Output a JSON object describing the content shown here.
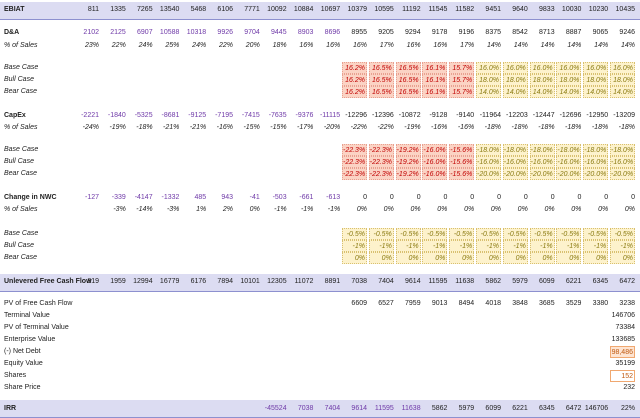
{
  "table": {
    "rows": [
      {
        "label": "EBIAT",
        "values": [
          "811",
          "1335",
          "7265",
          "13540",
          "5468",
          "6106",
          "7771",
          "10092",
          "10884",
          "10697",
          "10379",
          "10595",
          "11192",
          "11545",
          "11582",
          "9451",
          "9640",
          "9833",
          "10030",
          "10230",
          "10435"
        ]
      },
      {
        "label": "D&A",
        "values": [
          "2102",
          "2125",
          "6907",
          "10588",
          "10318",
          "9926",
          "9704",
          "9445",
          "8903",
          "8696",
          "8955",
          "9205",
          "9294",
          "9178",
          "9196",
          "8375",
          "8542",
          "8713",
          "8887",
          "9065",
          "9246"
        ]
      },
      {
        "label": "% of Sales",
        "values": [
          "23%",
          "22%",
          "24%",
          "25%",
          "24%",
          "22%",
          "20%",
          "18%",
          "16%",
          "16%",
          "16%",
          "17%",
          "16%",
          "16%",
          "17%",
          "14%",
          "14%",
          "14%",
          "14%",
          "14%",
          "14%"
        ]
      },
      {
        "label": "Base Case",
        "values": [
          null,
          null,
          null,
          null,
          null,
          null,
          null,
          null,
          null,
          null,
          "16.2%",
          "16.5%",
          "16.5%",
          "16.1%",
          "15.7%",
          "16.0%",
          "16.0%",
          "16.0%",
          "16.0%",
          "16.0%",
          "16.0%"
        ]
      },
      {
        "label": "Bull Case",
        "values": [
          null,
          null,
          null,
          null,
          null,
          null,
          null,
          null,
          null,
          null,
          "16.2%",
          "16.5%",
          "16.5%",
          "16.1%",
          "15.7%",
          "18.0%",
          "18.0%",
          "18.0%",
          "18.0%",
          "18.0%",
          "18.0%"
        ]
      },
      {
        "label": "Bear Case",
        "values": [
          null,
          null,
          null,
          null,
          null,
          null,
          null,
          null,
          null,
          null,
          "16.2%",
          "16.5%",
          "16.5%",
          "16.1%",
          "15.7%",
          "14.0%",
          "14.0%",
          "14.0%",
          "14.0%",
          "14.0%",
          "14.0%"
        ]
      },
      {
        "label": "CapEx",
        "values": [
          "-2221",
          "-1840",
          "-5325",
          "-8681",
          "-9125",
          "-7195",
          "-7415",
          "-7635",
          "-9376",
          "-11115",
          "-12296",
          "-12396",
          "-10872",
          "-9128",
          "-9140",
          "-11964",
          "-12203",
          "-12447",
          "-12696",
          "-12950",
          "-13209"
        ]
      },
      {
        "label": "% of Sales",
        "values": [
          "-24%",
          "-19%",
          "-18%",
          "-21%",
          "-21%",
          "-16%",
          "-15%",
          "-15%",
          "-17%",
          "-20%",
          "-22%",
          "-22%",
          "-19%",
          "-16%",
          "-16%",
          "-18%",
          "-18%",
          "-18%",
          "-18%",
          "-18%",
          "-18%"
        ]
      },
      {
        "label": "Base Case",
        "values": [
          null,
          null,
          null,
          null,
          null,
          null,
          null,
          null,
          null,
          null,
          "-22.3%",
          "-22.3%",
          "-19.2%",
          "-16.0%",
          "-15.6%",
          "-18.0%",
          "-18.0%",
          "-18.0%",
          "-18.0%",
          "-18.0%",
          "-18.0%"
        ]
      },
      {
        "label": "Bull Case",
        "values": [
          null,
          null,
          null,
          null,
          null,
          null,
          null,
          null,
          null,
          null,
          "-22.3%",
          "-22.3%",
          "-19.2%",
          "-16.0%",
          "-15.6%",
          "-16.0%",
          "-16.0%",
          "-16.0%",
          "-16.0%",
          "-16.0%",
          "-16.0%"
        ]
      },
      {
        "label": "Bear Case",
        "values": [
          null,
          null,
          null,
          null,
          null,
          null,
          null,
          null,
          null,
          null,
          "-22.3%",
          "-22.3%",
          "-19.2%",
          "-16.0%",
          "-15.6%",
          "-20.0%",
          "-20.0%",
          "-20.0%",
          "-20.0%",
          "-20.0%",
          "-20.0%"
        ]
      },
      {
        "label": "Change in NWC",
        "values": [
          "-127",
          "-339",
          "-4147",
          "-1332",
          "485",
          "943",
          "-41",
          "-503",
          "-661",
          "-613",
          "0",
          "0",
          "0",
          "0",
          "0",
          "0",
          "0",
          "0",
          "0",
          "0",
          "0"
        ]
      },
      {
        "label": "% of Sales",
        "values": [
          null,
          "-3%",
          "-14%",
          "-3%",
          "1%",
          "2%",
          "0%",
          "-1%",
          "-1%",
          "-1%",
          "0%",
          "0%",
          "0%",
          "0%",
          "0%",
          "0%",
          "0%",
          "0%",
          "0%",
          "0%",
          "0%"
        ]
      },
      {
        "label": "Base Case",
        "values": [
          null,
          null,
          null,
          null,
          null,
          null,
          null,
          null,
          null,
          null,
          "-0.5%",
          "-0.5%",
          "-0.5%",
          "-0.5%",
          "-0.5%",
          "-0.5%",
          "-0.5%",
          "-0.5%",
          "-0.5%",
          "-0.5%",
          "-0.5%"
        ]
      },
      {
        "label": "Bull Case",
        "values": [
          null,
          null,
          null,
          null,
          null,
          null,
          null,
          null,
          null,
          null,
          "-1%",
          "-1%",
          "-1%",
          "-1%",
          "-1%",
          "-1%",
          "-1%",
          "-1%",
          "-1%",
          "-1%",
          "-1%"
        ]
      },
      {
        "label": "Bear Case",
        "values": [
          null,
          null,
          null,
          null,
          null,
          null,
          null,
          null,
          null,
          null,
          "0%",
          "0%",
          "0%",
          "0%",
          "0%",
          "0%",
          "0%",
          "0%",
          "0%",
          "0%",
          "0%"
        ]
      },
      {
        "label": "Unlevered Free Cash Flow",
        "values": [
          "819",
          "1959",
          "12994",
          "16779",
          "6176",
          "7894",
          "10101",
          "12305",
          "11072",
          "8891",
          "7038",
          "7404",
          "9614",
          "11595",
          "11638",
          "5862",
          "5979",
          "6099",
          "6221",
          "6345",
          "6472"
        ]
      },
      {
        "label": "PV of Free Cash Flow",
        "values": [
          null,
          null,
          null,
          null,
          null,
          null,
          null,
          null,
          null,
          null,
          "6609",
          "6527",
          "7959",
          "9013",
          "8494",
          "4018",
          "3848",
          "3685",
          "3529",
          "3380",
          "3238"
        ]
      },
      {
        "label": "Terminal Value",
        "values": [
          null,
          null,
          null,
          null,
          null,
          null,
          null,
          null,
          null,
          null,
          null,
          null,
          null,
          null,
          null,
          null,
          null,
          null,
          null,
          null,
          "146706"
        ]
      },
      {
        "label": "PV of Terminal Value",
        "values": [
          null,
          null,
          null,
          null,
          null,
          null,
          null,
          null,
          null,
          null,
          null,
          null,
          null,
          null,
          null,
          null,
          null,
          null,
          null,
          null,
          "73384"
        ]
      },
      {
        "label": "Enterprise Value",
        "values": [
          null,
          null,
          null,
          null,
          null,
          null,
          null,
          null,
          null,
          null,
          null,
          null,
          null,
          null,
          null,
          null,
          null,
          null,
          null,
          null,
          "133685"
        ]
      },
      {
        "label": "(-) Net Debt",
        "values": [
          null,
          null,
          null,
          null,
          null,
          null,
          null,
          null,
          null,
          null,
          null,
          null,
          null,
          null,
          null,
          null,
          null,
          null,
          null,
          null,
          "98,486"
        ]
      },
      {
        "label": "Equity Value",
        "values": [
          null,
          null,
          null,
          null,
          null,
          null,
          null,
          null,
          null,
          null,
          null,
          null,
          null,
          null,
          null,
          null,
          null,
          null,
          null,
          null,
          "35199"
        ]
      },
      {
        "label": "Shares",
        "values": [
          null,
          null,
          null,
          null,
          null,
          null,
          null,
          null,
          null,
          null,
          null,
          null,
          null,
          null,
          null,
          null,
          null,
          null,
          null,
          null,
          "152"
        ]
      },
      {
        "label": "Share Price",
        "values": [
          null,
          null,
          null,
          null,
          null,
          null,
          null,
          null,
          null,
          null,
          null,
          null,
          null,
          null,
          null,
          null,
          null,
          null,
          null,
          null,
          "232"
        ]
      },
      {
        "label": "IRR",
        "values": [
          null,
          null,
          null,
          null,
          null,
          null,
          null,
          "-45524",
          "7038",
          "7404",
          "9614",
          "11595",
          "11638",
          "5862",
          "5979",
          "6099",
          "6221",
          "6345",
          "6472",
          "146706",
          "22%"
        ]
      }
    ]
  }
}
